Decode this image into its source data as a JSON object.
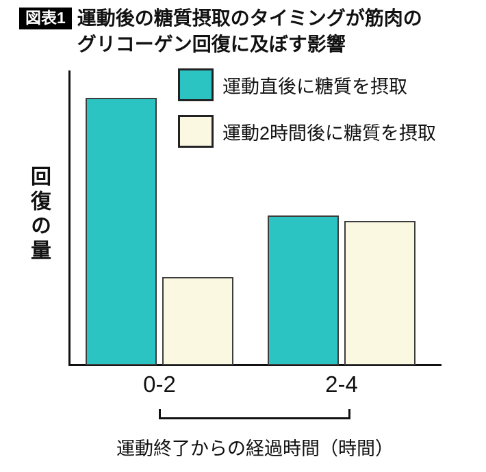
{
  "header": {
    "badge": "図表1",
    "title_lines": [
      "運動後の糖質摂取のタイミングが筋肉の",
      "グリコーゲン回復に及ぼす影響"
    ]
  },
  "chart_data": {
    "type": "bar",
    "title": "運動後の糖質摂取のタイミングが筋肉のグリコーゲン回復に及ぼす影響",
    "categories": [
      "0-2",
      "2-4"
    ],
    "series": [
      {
        "name": "運動直後に糖質を摂取",
        "color": "#2cc3c3",
        "values": [
          91,
          51
        ]
      },
      {
        "name": "運動2時間後に糖質を摂取",
        "color": "#fbf8e2",
        "values": [
          30,
          49
        ]
      }
    ],
    "ylabel": "回復の量",
    "xlabel": "運動終了からの経過時間（時間）",
    "ylim": [
      0,
      100
    ],
    "y_ticks": [],
    "grid": false,
    "legend_position": "top"
  }
}
